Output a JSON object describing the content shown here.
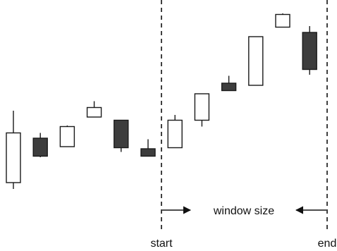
{
  "chart_data": {
    "type": "candlestick",
    "title": "",
    "xlabel": "",
    "ylabel": "",
    "ylim": [
      0,
      100
    ],
    "colors": {
      "up_body": "#ffffff",
      "down_body": "#3d3d3d",
      "outline": "#1a1a1a"
    },
    "candles": [
      {
        "index": 1,
        "direction": "up",
        "open": 17,
        "high": 51,
        "low": 14,
        "close": 40.5
      },
      {
        "index": 2,
        "direction": "down",
        "open": 38,
        "high": 40.5,
        "low": 29,
        "close": 29.5
      },
      {
        "index": 3,
        "direction": "up",
        "open": 34,
        "high": 44,
        "low": 34,
        "close": 43.5
      },
      {
        "index": 4,
        "direction": "up",
        "open": 48,
        "high": 55.5,
        "low": 48,
        "close": 52.5
      },
      {
        "index": 5,
        "direction": "down",
        "open": 46.5,
        "high": 46.5,
        "low": 31.5,
        "close": 33.5
      },
      {
        "index": 6,
        "direction": "down",
        "open": 33,
        "high": 37.5,
        "low": 29.5,
        "close": 29.5
      },
      {
        "index": 7,
        "direction": "up",
        "open": 33.5,
        "high": 49,
        "low": 33.5,
        "close": 46.5
      },
      {
        "index": 8,
        "direction": "up",
        "open": 46.5,
        "high": 59,
        "low": 43.5,
        "close": 59
      },
      {
        "index": 9,
        "direction": "down",
        "open": 64,
        "high": 67.5,
        "low": 60.5,
        "close": 60.5
      },
      {
        "index": 10,
        "direction": "up",
        "open": 63,
        "high": 86,
        "low": 63,
        "close": 86
      },
      {
        "index": 11,
        "direction": "up",
        "open": 90.5,
        "high": 97,
        "low": 90.5,
        "close": 96.5
      },
      {
        "index": 12,
        "direction": "down",
        "open": 88,
        "high": 91,
        "low": 68,
        "close": 70.5
      }
    ],
    "annotations": {
      "start_label": "start",
      "end_label": "end",
      "window_label": "window size",
      "window_start_after_candle": 6,
      "window_end_after_candle": 12
    }
  }
}
